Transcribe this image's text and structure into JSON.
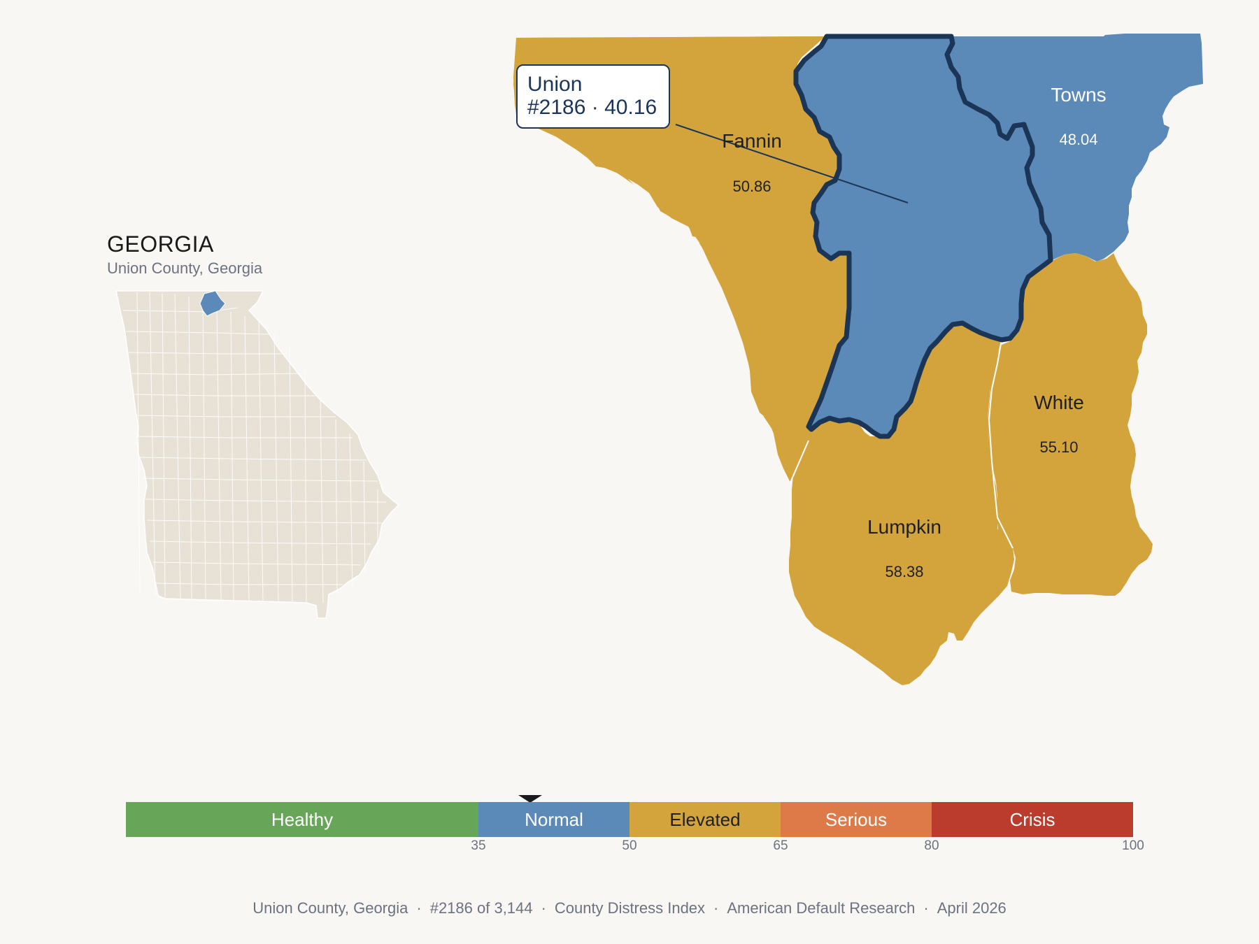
{
  "state": {
    "name": "GEORGIA",
    "subtitle": "Union County, Georgia",
    "highlight_color": "#5b89b8",
    "base_color": "#e7e1d6"
  },
  "callout": {
    "name": "Union",
    "rank_score": "#2186 · 40.16"
  },
  "counties": [
    {
      "name": "Union",
      "score": null,
      "category": "Normal",
      "color": "#5b89b8",
      "selected": true
    },
    {
      "name": "Fannin",
      "score": "50.86",
      "category": "Elevated",
      "color": "#d4a43c"
    },
    {
      "name": "Towns",
      "score": "48.04",
      "category": "Normal",
      "color": "#5b89b8"
    },
    {
      "name": "White",
      "score": "55.10",
      "category": "Elevated",
      "color": "#d4a43c"
    },
    {
      "name": "Lumpkin",
      "score": "58.38",
      "category": "Elevated",
      "color": "#d4a43c"
    }
  ],
  "scale": {
    "bands": [
      {
        "label": "Healthy",
        "from": 0,
        "to": 35,
        "color": "#67a659"
      },
      {
        "label": "Normal",
        "from": 35,
        "to": 50,
        "color": "#5b89b8"
      },
      {
        "label": "Elevated",
        "from": 50,
        "to": 65,
        "color": "#d4a43c"
      },
      {
        "label": "Serious",
        "from": 65,
        "to": 80,
        "color": "#de7a48"
      },
      {
        "label": "Crisis",
        "from": 80,
        "to": 100,
        "color": "#bb3c2c"
      }
    ],
    "ticks": [
      "35",
      "50",
      "65",
      "80",
      "100"
    ],
    "marker_value": 40.16
  },
  "footer": {
    "county": "Union County, Georgia",
    "rank": "#2186 of 3,144",
    "index": "County Distress Index",
    "source": "American Default Research",
    "date": "April 2026"
  }
}
